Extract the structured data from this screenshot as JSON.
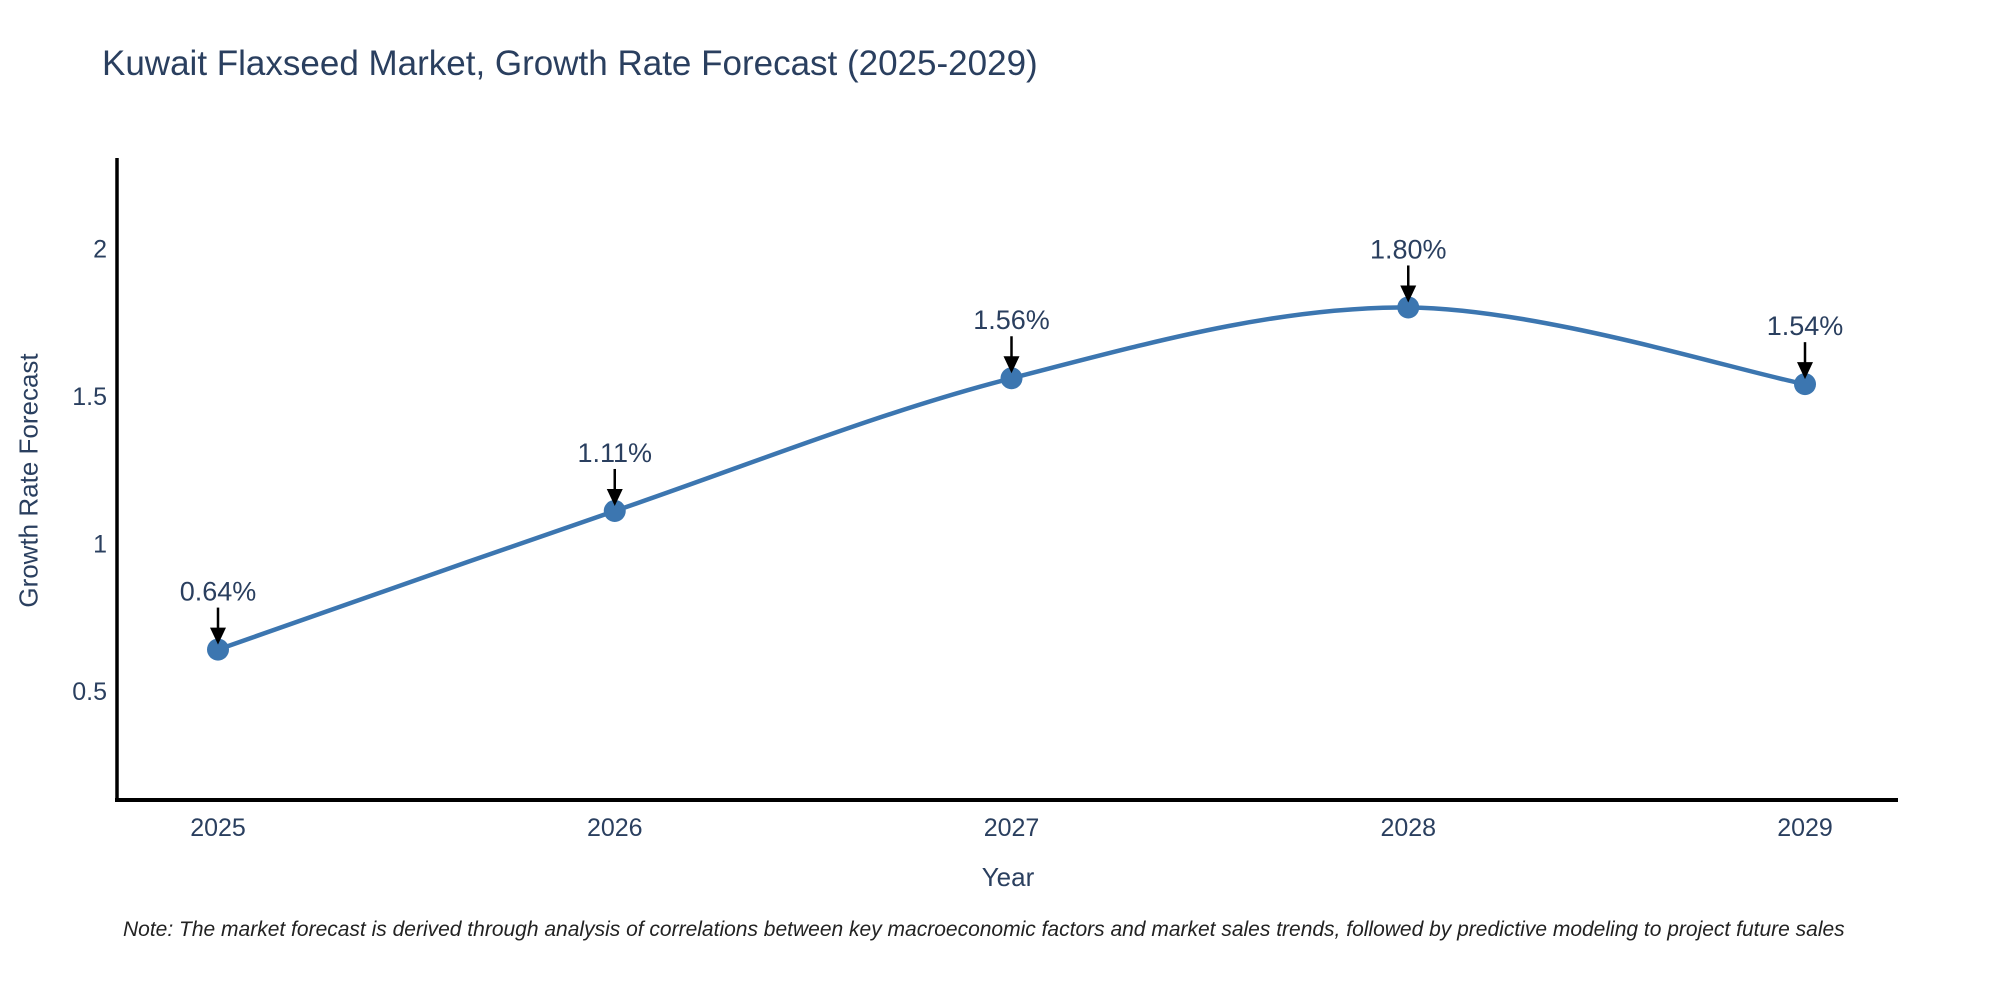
{
  "header": {
    "title": "Kuwait Flaxseed Market, Growth Rate Forecast (2025-2029)"
  },
  "chart_data": {
    "type": "line",
    "title": "Kuwait Flaxseed Market, Growth Rate Forecast (2025-2029)",
    "x": [
      2025,
      2026,
      2027,
      2028,
      2029
    ],
    "series": [
      {
        "name": "Growth Rate Forecast",
        "values": [
          0.64,
          1.11,
          1.56,
          1.8,
          1.54
        ]
      }
    ],
    "point_labels": [
      "0.64%",
      "1.11%",
      "1.56%",
      "1.80%",
      "1.54%"
    ],
    "xlabel": "Year",
    "ylabel": "Growth Rate Forecast",
    "yticks": [
      0.5,
      1,
      1.5,
      2
    ],
    "ylim": [
      0.13,
      2.3
    ],
    "grid": false,
    "legend": "none",
    "line_style": "spline",
    "marker_style": "circle",
    "annotation_arrows": true,
    "colors": {
      "line": "#3c76b0",
      "marker": "#3c76b0",
      "axis": "#000000",
      "text": "#2a3f5f",
      "annotation_arrow": "#000000"
    }
  },
  "footnote": {
    "text": "Note: The market forecast is derived through analysis of correlations between key macroeconomic factors and market sales trends, followed by predictive modeling to project future sales"
  }
}
